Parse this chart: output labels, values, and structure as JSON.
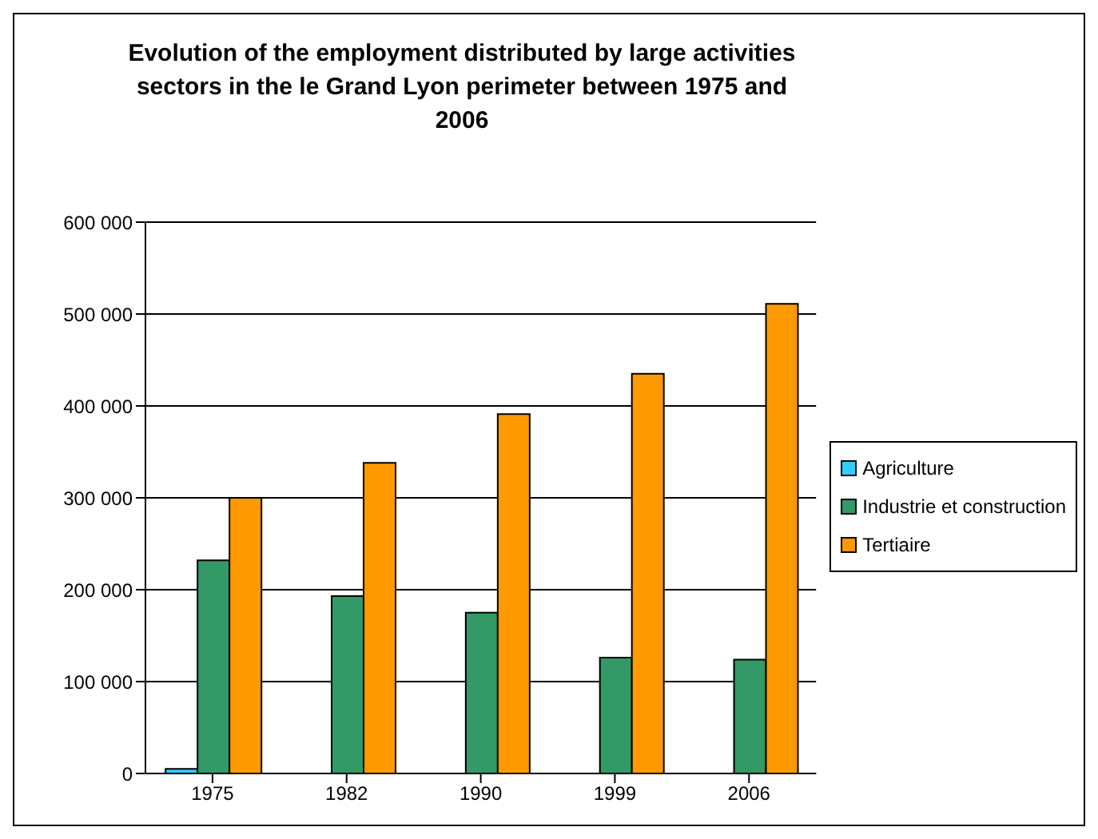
{
  "chart_data": {
    "type": "bar",
    "title": "Evolution of the employment distributed by large activities sectors in the le Grand Lyon perimeter between 1975 and 2006",
    "categories": [
      "1975",
      "1982",
      "1990",
      "1999",
      "2006"
    ],
    "series": [
      {
        "name": "Agriculture",
        "color": "#33ccff",
        "values": [
          5000,
          null,
          null,
          null,
          null
        ]
      },
      {
        "name": "Industrie et construction",
        "color": "#339966",
        "values": [
          232000,
          193000,
          175000,
          126000,
          124000
        ]
      },
      {
        "name": "Tertiaire",
        "color": "#ff9900",
        "values": [
          300000,
          338000,
          391000,
          435000,
          511000
        ]
      }
    ],
    "ylim": [
      0,
      600000
    ],
    "yticks": [
      {
        "value": 0,
        "label": "0"
      },
      {
        "value": 100000,
        "label": "100 000"
      },
      {
        "value": 200000,
        "label": "200 000"
      },
      {
        "value": 300000,
        "label": "300 000"
      },
      {
        "value": 400000,
        "label": "400 000"
      },
      {
        "value": 500000,
        "label": "500 000"
      },
      {
        "value": 600000,
        "label": "600 000"
      }
    ],
    "grid": "y",
    "legend": "right"
  }
}
